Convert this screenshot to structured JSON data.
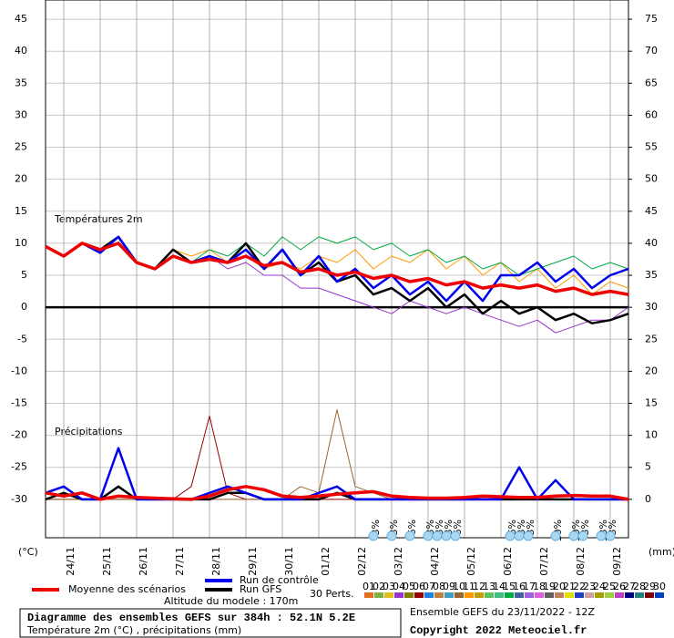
{
  "chart_data": {
    "type": "line",
    "title": "Diagramme des ensembles GEFS sur 384h : 52.1N 5.2E",
    "subtitle": "Température 2m (°C) , précipitations (mm)",
    "run_info": "Ensemble GEFS du 23/11/2022 - 12Z",
    "copyright": "Copyright 2022 Meteociel.fr",
    "altitude": "Altitude du modele : 170m",
    "temp_label": "Températures 2m",
    "precip_label": "Précipitations",
    "y_unit": "(°C)",
    "y2_unit": "(mm)",
    "perturbations_label": "30 Perts.",
    "grid": true,
    "zero_line": true,
    "xlim": [
      0,
      384
    ],
    "xticks": [
      {
        "value": 12,
        "label": "24/11"
      },
      {
        "value": 36,
        "label": "25/11"
      },
      {
        "value": 60,
        "label": "26/11"
      },
      {
        "value": 84,
        "label": "27/11"
      },
      {
        "value": 108,
        "label": "28/11"
      },
      {
        "value": 132,
        "label": "29/11"
      },
      {
        "value": 156,
        "label": "30/11"
      },
      {
        "value": 180,
        "label": "01/12"
      },
      {
        "value": 204,
        "label": "02/12"
      },
      {
        "value": 228,
        "label": "03/12"
      },
      {
        "value": 252,
        "label": "04/12"
      },
      {
        "value": 276,
        "label": "05/12"
      },
      {
        "value": 300,
        "label": "06/12"
      },
      {
        "value": 324,
        "label": "07/12"
      },
      {
        "value": 348,
        "label": "08/12"
      },
      {
        "value": 372,
        "label": "09/12"
      }
    ],
    "ylim": [
      -36,
      48
    ],
    "yticks": [
      -30,
      -25,
      -20,
      -15,
      -10,
      -5,
      0,
      5,
      10,
      15,
      20,
      25,
      30,
      35,
      40,
      45
    ],
    "y2lim": [
      -6,
      78
    ],
    "y2ticks": [
      0,
      5,
      10,
      15,
      20,
      25,
      30,
      35,
      40,
      45,
      50,
      55,
      60,
      65,
      70,
      75
    ],
    "x": [
      0,
      12,
      24,
      36,
      48,
      60,
      72,
      84,
      96,
      108,
      120,
      132,
      144,
      156,
      168,
      180,
      192,
      204,
      216,
      228,
      240,
      252,
      264,
      276,
      288,
      300,
      312,
      324,
      336,
      348,
      360,
      372,
      384
    ],
    "series": [
      {
        "name": "Run GFS",
        "color": "#000000",
        "values": [
          9.5,
          8,
          10,
          9,
          11,
          7,
          6,
          9,
          7,
          8,
          7,
          10,
          6,
          9,
          5,
          7,
          4,
          5,
          2,
          3,
          1,
          3,
          0,
          2,
          -1,
          1,
          -1,
          0,
          -2,
          -1,
          -2.5,
          -2,
          -1
        ],
        "precip_values": [
          0,
          1,
          0,
          0,
          2,
          0,
          0,
          0,
          0,
          0,
          1,
          1,
          0,
          0,
          0,
          0,
          1,
          0,
          0,
          0,
          0,
          0,
          0,
          0,
          0,
          0,
          0,
          0,
          0,
          0,
          0,
          0,
          0
        ]
      },
      {
        "name": "Run de contrôle",
        "color": "#0000ee",
        "values": [
          9.5,
          8,
          10,
          8.5,
          11,
          7,
          6,
          8,
          7,
          8,
          7,
          9,
          6,
          9,
          5,
          8,
          4,
          6,
          3,
          5,
          2,
          4,
          1,
          4,
          1,
          5,
          5,
          7,
          4,
          6,
          3,
          5,
          6
        ],
        "precip_values": [
          1,
          2,
          0,
          0,
          8,
          0,
          0,
          0,
          0,
          1,
          2,
          1,
          0,
          0,
          0,
          1,
          2,
          0,
          0,
          0,
          0,
          0,
          0,
          0,
          0,
          0,
          5,
          0,
          3,
          0,
          0,
          0,
          0
        ]
      },
      {
        "name": "Moyenne des scénarios",
        "color": "#ee0000",
        "values": [
          9.5,
          8,
          10,
          9,
          10,
          7,
          6,
          8,
          7,
          7.5,
          7,
          8,
          6.5,
          7,
          5.5,
          6,
          5,
          5.5,
          4.5,
          5,
          4,
          4.5,
          3.5,
          4,
          3,
          3.5,
          3,
          3.5,
          2.5,
          3,
          2,
          2.5,
          2
        ],
        "precip_values": [
          1,
          0.5,
          1,
          0,
          0.5,
          0.3,
          0.2,
          0.1,
          0,
          0.5,
          1.5,
          2,
          1.5,
          0.5,
          0.3,
          0.5,
          0.8,
          1,
          1.2,
          0.5,
          0.3,
          0.2,
          0.2,
          0.3,
          0.5,
          0.4,
          0.3,
          0.3,
          0.5,
          0.6,
          0.5,
          0.5,
          0
        ]
      }
    ],
    "perturbations": [
      {
        "name": "01",
        "color": "#e07020"
      },
      {
        "name": "02",
        "color": "#80b040"
      },
      {
        "name": "03",
        "color": "#e0c020"
      },
      {
        "name": "04",
        "color": "#9933cc",
        "values": [
          9.5,
          8,
          10,
          8.5,
          11,
          7,
          6,
          8,
          7,
          8,
          6,
          7,
          5,
          5,
          3,
          3,
          2,
          1,
          0,
          -1,
          1,
          0,
          -1,
          0,
          -1,
          -2,
          -3,
          -2,
          -4,
          -3,
          -2,
          -2,
          0
        ]
      },
      {
        "name": "05",
        "color": "#808000"
      },
      {
        "name": "06",
        "color": "#990000",
        "precip_values": [
          0,
          0,
          0,
          0,
          0,
          0,
          0,
          0,
          2,
          13,
          1,
          0,
          0,
          0,
          0,
          0,
          0,
          0,
          0,
          0,
          0,
          0,
          0,
          0,
          0,
          0,
          0,
          0,
          0,
          0,
          0,
          0,
          0
        ]
      },
      {
        "name": "07",
        "color": "#2080e0"
      },
      {
        "name": "08",
        "color": "#c08040"
      },
      {
        "name": "09",
        "color": "#40a0c0"
      },
      {
        "name": "10",
        "color": "#996633",
        "precip_values": [
          0,
          0,
          0,
          0,
          0,
          0,
          0,
          0,
          0,
          0,
          0,
          0,
          0,
          0,
          2,
          1,
          14,
          2,
          1,
          0,
          0,
          0,
          0,
          0,
          0,
          0,
          0,
          0,
          0,
          0,
          0,
          0,
          0
        ]
      },
      {
        "name": "11",
        "color": "#ff9900",
        "values": [
          9.5,
          8,
          10,
          9,
          10,
          7,
          6,
          9,
          8,
          9,
          7,
          8,
          6,
          7,
          6,
          8,
          7,
          9,
          6,
          8,
          7,
          9,
          6,
          8,
          5,
          7,
          4,
          6,
          3,
          5,
          2,
          4,
          3
        ]
      },
      {
        "name": "12",
        "color": "#c0a000"
      },
      {
        "name": "13",
        "color": "#60c060"
      },
      {
        "name": "14",
        "color": "#40c080"
      },
      {
        "name": "15",
        "color": "#00aa44",
        "values": [
          9.5,
          8,
          10,
          9,
          11,
          7,
          6,
          8,
          7,
          9,
          8,
          10,
          8,
          11,
          9,
          11,
          10,
          11,
          9,
          10,
          8,
          9,
          7,
          8,
          6,
          7,
          5,
          6,
          7,
          8,
          6,
          7,
          6
        ]
      },
      {
        "name": "16",
        "color": "#4060a0"
      },
      {
        "name": "17",
        "color": "#a060e0"
      },
      {
        "name": "18",
        "color": "#e060e0"
      },
      {
        "name": "19",
        "color": "#606060"
      },
      {
        "name": "20",
        "color": "#c08060"
      },
      {
        "name": "21",
        "color": "#e0e000"
      },
      {
        "name": "22",
        "color": "#2040c0"
      },
      {
        "name": "23",
        "color": "#d0a0a0"
      },
      {
        "name": "24",
        "color": "#a0a000"
      },
      {
        "name": "25",
        "color": "#a0d040"
      },
      {
        "name": "26",
        "color": "#c040c0"
      },
      {
        "name": "27",
        "color": "#000080"
      },
      {
        "name": "28",
        "color": "#208080"
      },
      {
        "name": "29",
        "color": "#800000"
      },
      {
        "name": "30",
        "color": "#0040c0"
      }
    ],
    "snow": [
      {
        "x": 216,
        "value": 3,
        "label": "3%"
      },
      {
        "x": 228,
        "value": 3,
        "label": "3%"
      },
      {
        "x": 240,
        "value": 6,
        "label": "6%"
      },
      {
        "x": 252,
        "value": 3,
        "label": "3%"
      },
      {
        "x": 258,
        "value": 3,
        "label": "3%"
      },
      {
        "x": 264,
        "value": 3,
        "label": "3%"
      },
      {
        "x": 270,
        "value": 6,
        "label": "6%"
      },
      {
        "x": 306,
        "value": 6,
        "label": "6%"
      },
      {
        "x": 312,
        "value": 3,
        "label": "3%"
      },
      {
        "x": 318,
        "value": 3,
        "label": "3%"
      },
      {
        "x": 336,
        "value": 10,
        "label": "10%"
      },
      {
        "x": 348,
        "value": 10,
        "label": "10%"
      },
      {
        "x": 354,
        "value": 3,
        "label": "3%"
      },
      {
        "x": 366,
        "value": 13,
        "label": "13%"
      },
      {
        "x": 372,
        "value": 3,
        "label": "3%"
      }
    ]
  }
}
